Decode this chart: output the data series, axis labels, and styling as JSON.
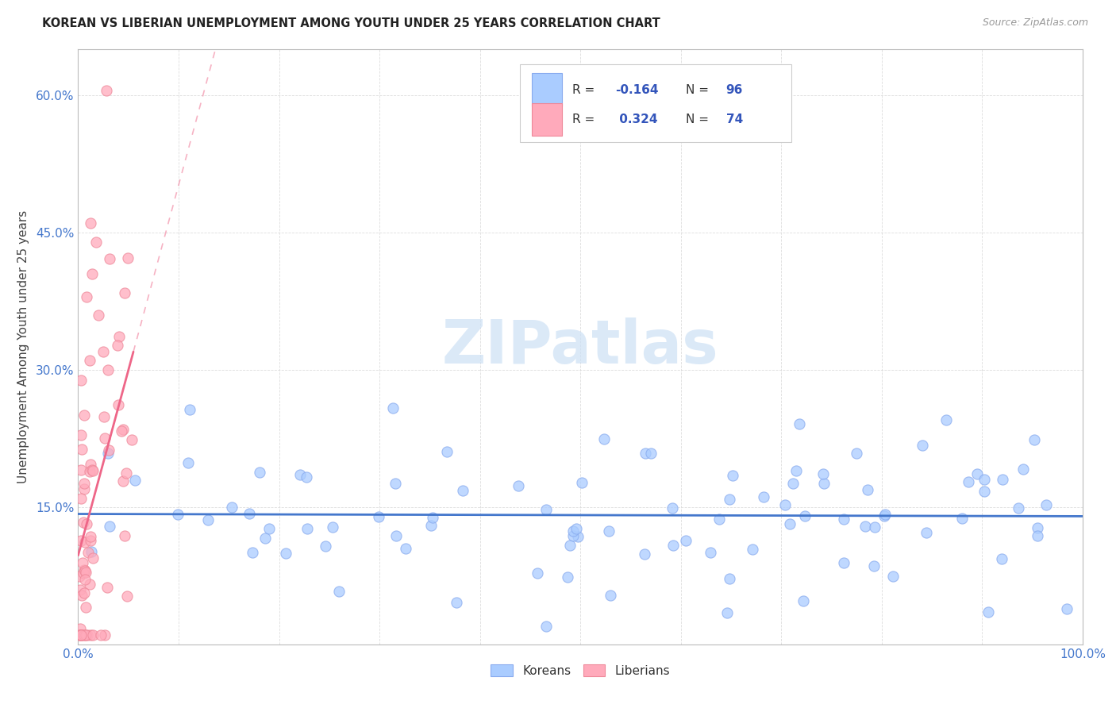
{
  "title": "KOREAN VS LIBERIAN UNEMPLOYMENT AMONG YOUTH UNDER 25 YEARS CORRELATION CHART",
  "source": "Source: ZipAtlas.com",
  "ylabel": "Unemployment Among Youth under 25 years",
  "xlim": [
    0,
    1.0
  ],
  "ylim": [
    0,
    0.65
  ],
  "x_tick_labels": [
    "0.0%",
    "",
    "",
    "",
    "",
    "",
    "",
    "",
    "",
    "",
    "100.0%"
  ],
  "y_tick_labels": [
    "",
    "15.0%",
    "30.0%",
    "45.0%",
    "60.0%"
  ],
  "korean_color": "#aaccff",
  "korean_edge_color": "#88aaee",
  "liberian_color": "#ffaabb",
  "liberian_edge_color": "#ee8899",
  "korean_R": -0.164,
  "korean_N": 96,
  "liberian_R": 0.324,
  "liberian_N": 74,
  "korean_line_color": "#4477cc",
  "liberian_line_color": "#ee6688",
  "legend_R_color": "#3355bb",
  "legend_label_color": "#333333",
  "watermark_color": "#cce0f5",
  "background_color": "#ffffff",
  "grid_color": "#dddddd",
  "tick_color": "#4477cc",
  "title_color": "#222222",
  "source_color": "#999999",
  "seed": 12345
}
